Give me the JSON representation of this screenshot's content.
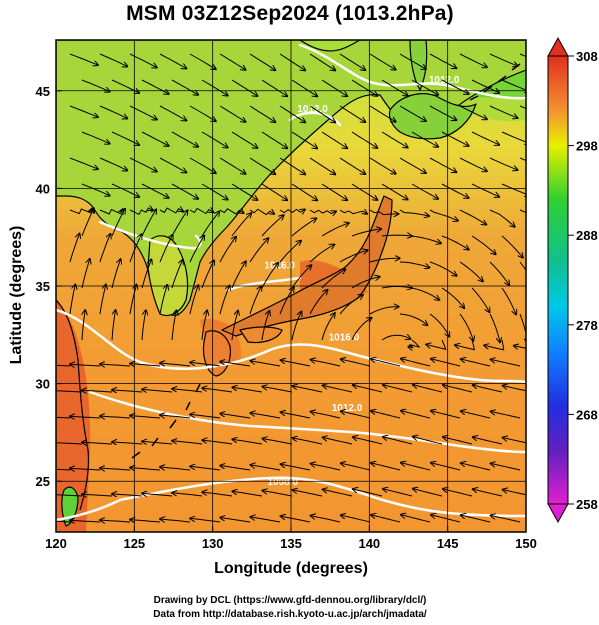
{
  "title": "MSM 03Z12Sep2024 (1013.2hPa)",
  "map": {
    "x_axis": {
      "label": "Longitude (degrees)",
      "range": [
        120,
        150
      ],
      "ticks": [
        {
          "value": 120,
          "label": "120"
        },
        {
          "value": 125,
          "label": "125"
        },
        {
          "value": 130,
          "label": "130"
        },
        {
          "value": 135,
          "label": "135"
        },
        {
          "value": 140,
          "label": "140"
        },
        {
          "value": 145,
          "label": "145"
        },
        {
          "value": 150,
          "label": "150"
        }
      ]
    },
    "y_axis": {
      "label": "Latitude  (degrees)",
      "range": [
        22.4,
        47.6
      ],
      "ticks": [
        {
          "value": 25,
          "label": "25"
        },
        {
          "value": 30,
          "label": "30"
        },
        {
          "value": 35,
          "label": "35"
        },
        {
          "value": 40,
          "label": "40"
        },
        {
          "value": 45,
          "label": "45"
        }
      ]
    },
    "grid": true,
    "colorbar": {
      "range": [
        258,
        308
      ],
      "ticks": [
        {
          "value": 308,
          "label": "308"
        },
        {
          "value": 298,
          "label": "298"
        },
        {
          "value": 288,
          "label": "288"
        },
        {
          "value": 278,
          "label": "278"
        },
        {
          "value": 268,
          "label": "268"
        },
        {
          "value": 258,
          "label": "258"
        }
      ],
      "colors": {
        "low": "#e020d0",
        "mid_blue": "#2040ff",
        "cyan": "#00c8e8",
        "green": "#10c030",
        "yellow": "#e8f000",
        "orange": "#f59030",
        "high": "#e03020"
      }
    },
    "isobar_labels": [
      {
        "text": "1012.0",
        "lon": 143.8,
        "lat": 45.4
      },
      {
        "text": "1012.0",
        "lon": 135.4,
        "lat": 43.9
      },
      {
        "text": "1016.0",
        "lon": 133.3,
        "lat": 35.9
      },
      {
        "text": "1016.0",
        "lon": 137.4,
        "lat": 32.2
      },
      {
        "text": "1012.0",
        "lon": 137.6,
        "lat": 28.6
      },
      {
        "text": "1008.0",
        "lon": 133.5,
        "lat": 24.8
      }
    ]
  },
  "credits": {
    "line1": "Drawing by DCL (https://www.gfd-dennou.org/library/dcl/)",
    "line2": "Data from http://database.rish.kyoto-u.ac.jp/arch/jmadata/"
  }
}
